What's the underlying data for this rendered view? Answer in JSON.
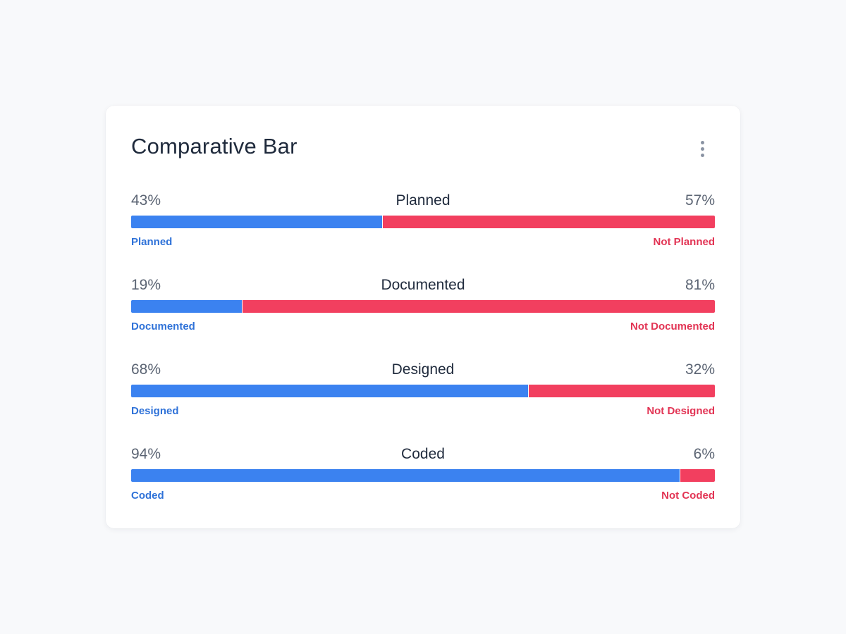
{
  "card": {
    "title": "Comparative Bar"
  },
  "colors": {
    "positive": "#3b82f0",
    "negative": "#f23f5f",
    "positive_label": "#2f72d8",
    "negative_label": "#e23454"
  },
  "icons": {
    "menu": "more-vertical-icon"
  },
  "chart_data": {
    "type": "bar",
    "stacked": true,
    "orientation": "horizontal",
    "title": "Comparative Bar",
    "categories": [
      "Planned",
      "Documented",
      "Designed",
      "Coded"
    ],
    "rows": [
      {
        "title": "Planned",
        "left_pct": "43%",
        "right_pct": "57%",
        "left_value": 43,
        "right_value": 57,
        "left_label": "Planned",
        "right_label": "Not Planned"
      },
      {
        "title": "Documented",
        "left_pct": "19%",
        "right_pct": "81%",
        "left_value": 19,
        "right_value": 81,
        "left_label": "Documented",
        "right_label": "Not Documented"
      },
      {
        "title": "Designed",
        "left_pct": "68%",
        "right_pct": "32%",
        "left_value": 68,
        "right_value": 32,
        "left_label": "Designed",
        "right_label": "Not Designed"
      },
      {
        "title": "Coded",
        "left_pct": "94%",
        "right_pct": "6%",
        "left_value": 94,
        "right_value": 6,
        "left_label": "Coded",
        "right_label": "Not Coded"
      }
    ],
    "xlim": [
      0,
      100
    ]
  }
}
